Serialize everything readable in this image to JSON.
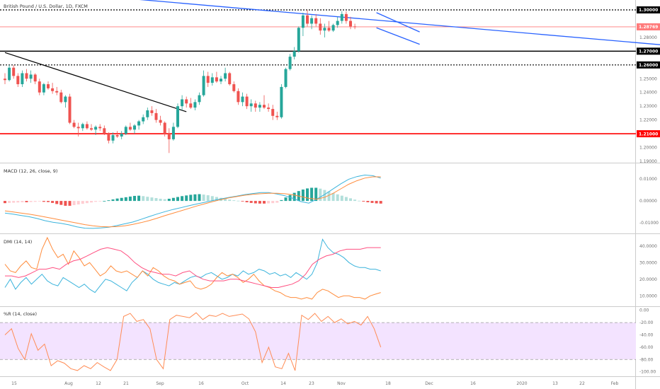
{
  "header": {
    "title": "British Pound / U.S. Dollar, 1D, FXCM"
  },
  "colors": {
    "up": "#26a69a",
    "down": "#ef5350",
    "trendline": "#2962ff",
    "level": "#000000",
    "support": "#ff0000",
    "last_price": "#ff7a7a",
    "macd_line": "#3cb4dc",
    "signal_line": "#ff8c3c",
    "plus_di": "#3cb4dc",
    "minus_di": "#ff8c3c",
    "adx": "#ff4f80",
    "willr": "#ff8c55",
    "willr_band": "#f3e3ff"
  },
  "chart_data": [
    {
      "panel": "price",
      "type": "candlestick",
      "title": "British Pound / U.S. Dollar, 1D, FXCM",
      "ylim": [
        1.19,
        1.305
      ],
      "y_ticks": [
        "1.30000",
        "1.28000",
        "1.27000",
        "1.26000",
        "1.25000",
        "1.24000",
        "1.23000",
        "1.22000",
        "1.21000",
        "1.20000",
        "1.19000"
      ],
      "price_labels": [
        {
          "label": "1.30000",
          "value": 1.3,
          "style": "dashed"
        },
        {
          "label": "1.28769",
          "value": 1.28769,
          "style": "last"
        },
        {
          "label": "1.27000",
          "value": 1.27,
          "style": "solid"
        },
        {
          "label": "1.26000",
          "value": 1.26,
          "style": "dashed"
        },
        {
          "label": "1.21000",
          "value": 1.21,
          "style": "support"
        }
      ],
      "x_labels": [
        "15",
        "Aug",
        "12",
        "21",
        "Sep",
        "16",
        "Oct",
        "14",
        "23",
        "Nov",
        "18",
        "Dec",
        "16",
        "2020",
        "13",
        "22",
        "Feb"
      ],
      "trendlines": [
        {
          "from": [
            0,
            1.316
          ],
          "to": [
            180,
            1.267
          ]
        },
        {
          "from": [
            0,
            1.269
          ],
          "to": [
            42,
            1.226
          ]
        },
        {
          "from": [
            86,
            1.298
          ],
          "to": [
            96,
            1.284
          ]
        },
        {
          "from": [
            86,
            1.287
          ],
          "to": [
            96,
            1.275
          ]
        }
      ],
      "ohlc": [
        [
          1.25,
          1.254,
          1.246,
          1.249
        ],
        [
          1.249,
          1.26,
          1.248,
          1.258
        ],
        [
          1.258,
          1.26,
          1.25,
          1.252
        ],
        [
          1.252,
          1.254,
          1.244,
          1.246
        ],
        [
          1.246,
          1.256,
          1.244,
          1.254
        ],
        [
          1.254,
          1.257,
          1.248,
          1.25
        ],
        [
          1.25,
          1.256,
          1.247,
          1.253
        ],
        [
          1.253,
          1.254,
          1.246,
          1.248
        ],
        [
          1.248,
          1.25,
          1.238,
          1.24
        ],
        [
          1.24,
          1.247,
          1.238,
          1.246
        ],
        [
          1.246,
          1.248,
          1.242,
          1.243
        ],
        [
          1.243,
          1.247,
          1.239,
          1.241
        ],
        [
          1.241,
          1.244,
          1.238,
          1.24
        ],
        [
          1.24,
          1.242,
          1.232,
          1.233
        ],
        [
          1.233,
          1.238,
          1.229,
          1.237
        ],
        [
          1.237,
          1.239,
          1.217,
          1.218
        ],
        [
          1.218,
          1.22,
          1.214,
          1.215
        ],
        [
          1.215,
          1.218,
          1.208,
          1.214
        ],
        [
          1.214,
          1.218,
          1.212,
          1.217
        ],
        [
          1.217,
          1.219,
          1.213,
          1.214
        ],
        [
          1.214,
          1.217,
          1.212,
          1.213
        ],
        [
          1.213,
          1.216,
          1.209,
          1.215
        ],
        [
          1.215,
          1.217,
          1.212,
          1.214
        ],
        [
          1.214,
          1.216,
          1.209,
          1.21
        ],
        [
          1.21,
          1.211,
          1.203,
          1.205
        ],
        [
          1.205,
          1.211,
          1.203,
          1.209
        ],
        [
          1.209,
          1.212,
          1.207,
          1.208
        ],
        [
          1.208,
          1.212,
          1.206,
          1.21
        ],
        [
          1.21,
          1.216,
          1.209,
          1.215
        ],
        [
          1.215,
          1.218,
          1.212,
          1.213
        ],
        [
          1.213,
          1.217,
          1.21,
          1.216
        ],
        [
          1.216,
          1.22,
          1.213,
          1.219
        ],
        [
          1.219,
          1.224,
          1.217,
          1.222
        ],
        [
          1.222,
          1.229,
          1.22,
          1.227
        ],
        [
          1.227,
          1.23,
          1.223,
          1.225
        ],
        [
          1.225,
          1.228,
          1.218,
          1.22
        ],
        [
          1.22,
          1.223,
          1.216,
          1.218
        ],
        [
          1.218,
          1.219,
          1.208,
          1.21
        ],
        [
          1.21,
          1.214,
          1.196,
          1.206
        ],
        [
          1.206,
          1.218,
          1.205,
          1.215
        ],
        [
          1.215,
          1.232,
          1.214,
          1.23
        ],
        [
          1.23,
          1.238,
          1.227,
          1.235
        ],
        [
          1.235,
          1.237,
          1.229,
          1.232
        ],
        [
          1.232,
          1.236,
          1.228,
          1.229
        ],
        [
          1.229,
          1.235,
          1.227,
          1.233
        ],
        [
          1.233,
          1.24,
          1.231,
          1.238
        ],
        [
          1.238,
          1.256,
          1.237,
          1.252
        ],
        [
          1.252,
          1.255,
          1.244,
          1.247
        ],
        [
          1.247,
          1.254,
          1.245,
          1.251
        ],
        [
          1.251,
          1.255,
          1.247,
          1.248
        ],
        [
          1.248,
          1.252,
          1.246,
          1.25
        ],
        [
          1.25,
          1.258,
          1.248,
          1.254
        ],
        [
          1.254,
          1.255,
          1.245,
          1.246
        ],
        [
          1.246,
          1.248,
          1.24,
          1.241
        ],
        [
          1.241,
          1.243,
          1.231,
          1.233
        ],
        [
          1.233,
          1.24,
          1.23,
          1.237
        ],
        [
          1.237,
          1.239,
          1.228,
          1.23
        ],
        [
          1.23,
          1.235,
          1.226,
          1.232
        ],
        [
          1.232,
          1.234,
          1.226,
          1.229
        ],
        [
          1.229,
          1.233,
          1.226,
          1.231
        ],
        [
          1.231,
          1.238,
          1.228,
          1.229
        ],
        [
          1.229,
          1.232,
          1.226,
          1.228
        ],
        [
          1.228,
          1.231,
          1.22,
          1.223
        ],
        [
          1.223,
          1.226,
          1.22,
          1.222
        ],
        [
          1.222,
          1.246,
          1.221,
          1.244
        ],
        [
          1.244,
          1.258,
          1.243,
          1.257
        ],
        [
          1.257,
          1.268,
          1.256,
          1.266
        ],
        [
          1.266,
          1.273,
          1.264,
          1.27
        ],
        [
          1.27,
          1.288,
          1.269,
          1.287
        ],
        [
          1.287,
          1.298,
          1.281,
          1.296
        ],
        [
          1.296,
          1.3,
          1.288,
          1.29
        ],
        [
          1.29,
          1.296,
          1.286,
          1.294
        ],
        [
          1.294,
          1.297,
          1.288,
          1.29
        ],
        [
          1.29,
          1.294,
          1.282,
          1.285
        ],
        [
          1.285,
          1.29,
          1.28,
          1.287
        ],
        [
          1.287,
          1.292,
          1.284,
          1.285
        ],
        [
          1.285,
          1.29,
          1.284,
          1.289
        ],
        [
          1.289,
          1.295,
          1.287,
          1.292
        ],
        [
          1.292,
          1.299,
          1.29,
          1.297
        ],
        [
          1.297,
          1.299,
          1.29,
          1.292
        ],
        [
          1.292,
          1.295,
          1.286,
          1.288
        ],
        [
          1.288,
          1.29,
          1.286,
          1.2877
        ]
      ]
    },
    {
      "panel": "macd",
      "type": "line+histogram",
      "title": "MACD (12, 26, close, 9)",
      "ylim": [
        -0.0135,
        0.0155
      ],
      "y_ticks": [
        "0.01000",
        "0.00000",
        "-0.01000"
      ],
      "histogram": [
        -0.001,
        -0.0009,
        -0.0008,
        -0.0007,
        -0.0006,
        -0.0006,
        -0.0005,
        -0.0004,
        -0.0002,
        -0.0004,
        -0.0005,
        -0.0009,
        -0.0014,
        -0.0018,
        -0.0022,
        -0.0022,
        -0.0019,
        -0.0016,
        -0.0013,
        -0.001,
        -0.0007,
        -0.0004,
        -0.0002,
        0.0,
        0.0003,
        0.0007,
        0.0011,
        0.0014,
        0.0017,
        0.002,
        0.0023,
        0.0024,
        0.0022,
        0.0019,
        0.0016,
        0.0013,
        0.001,
        0.0008,
        0.001,
        0.0014,
        0.0018,
        0.0022,
        0.0025,
        0.0028,
        0.003,
        0.0031,
        0.0029,
        0.0026,
        0.0022,
        0.0018,
        0.0014,
        0.001,
        0.0006,
        0.0003,
        0.0001,
        -0.0002,
        -0.0006,
        -0.0009,
        -0.0011,
        -0.0012,
        -0.0012,
        -0.0011,
        -0.001,
        -0.0008,
        0.0004,
        0.0016,
        0.0027,
        0.0037,
        0.0045,
        0.0052,
        0.0057,
        0.006,
        0.006,
        0.0056,
        0.005,
        0.0043,
        0.0036,
        0.003,
        0.0024,
        0.0018,
        0.0012,
        0.0006,
        0.0001,
        -0.0003,
        -0.0006,
        -0.0009,
        -0.0011,
        -0.0012
      ],
      "macd": [
        -0.0055,
        -0.006,
        -0.0066,
        -0.0072,
        -0.008,
        -0.009,
        -0.0097,
        -0.0102,
        -0.0109,
        -0.0118,
        -0.0124,
        -0.0125,
        -0.0123,
        -0.012,
        -0.0112,
        -0.0104,
        -0.0096,
        -0.0084,
        -0.0072,
        -0.006,
        -0.0049,
        -0.0039,
        -0.0031,
        -0.0022,
        -0.0014,
        -0.0006,
        0.0002,
        0.0009,
        0.0016,
        0.0022,
        0.0029,
        0.0034,
        0.0038,
        0.0038,
        0.0032,
        0.0024,
        0.0012,
        -0.0003,
        -0.001,
        0.0008,
        0.003,
        0.0054,
        0.0078,
        0.0099,
        0.0111,
        0.0118,
        0.0115,
        0.0104
      ],
      "signal": [
        -0.0045,
        -0.005,
        -0.0055,
        -0.006,
        -0.0066,
        -0.0073,
        -0.008,
        -0.0087,
        -0.0094,
        -0.0101,
        -0.0108,
        -0.0113,
        -0.0117,
        -0.0118,
        -0.0117,
        -0.0113,
        -0.0107,
        -0.0099,
        -0.009,
        -0.0079,
        -0.0067,
        -0.0056,
        -0.0045,
        -0.0034,
        -0.0023,
        -0.0013,
        -0.0003,
        0.0006,
        0.0014,
        0.002,
        0.0026,
        0.003,
        0.0033,
        0.0035,
        0.0035,
        0.0033,
        0.0028,
        0.002,
        0.0012,
        0.0008,
        0.0017,
        0.0034,
        0.0055,
        0.0076,
        0.0092,
        0.0104,
        0.011,
        0.011
      ]
    },
    {
      "panel": "dmi",
      "type": "line",
      "title": "DMI (14, 14)",
      "ylim": [
        5,
        45
      ],
      "y_ticks": [
        "40.0000",
        "30.0000",
        "20.0000",
        "10.0000"
      ],
      "series": [
        {
          "key": "plus_di",
          "values": [
            15,
            20,
            14,
            18,
            21,
            17,
            20,
            23,
            19,
            17,
            16,
            21,
            19,
            17,
            15,
            17,
            14,
            12,
            16,
            20,
            19,
            17,
            15,
            13,
            18,
            21,
            25,
            23,
            20,
            18,
            17,
            16,
            18,
            17,
            19,
            21,
            22,
            21,
            23,
            24,
            22,
            20,
            21,
            23,
            22,
            25,
            23,
            24,
            26,
            25,
            23,
            24,
            22,
            23,
            21,
            24,
            22,
            20,
            23,
            30,
            44,
            39,
            36,
            35,
            33,
            30,
            28,
            27,
            27,
            26,
            26,
            25
          ]
        },
        {
          "key": "minus_di",
          "values": [
            29,
            25,
            24,
            28,
            31,
            27,
            26,
            38,
            45,
            38,
            33,
            35,
            29,
            37,
            33,
            28,
            30,
            26,
            22,
            24,
            28,
            25,
            24,
            25,
            23,
            21,
            25,
            22,
            27,
            25,
            22,
            20,
            19,
            17,
            18,
            19,
            15,
            14,
            15,
            17,
            21,
            24,
            22,
            23,
            21,
            18,
            20,
            23,
            19,
            16,
            15,
            13,
            12,
            10,
            9,
            9,
            8,
            9,
            8,
            12,
            14,
            13,
            11,
            9,
            10,
            10,
            9,
            9,
            8,
            10,
            11,
            12
          ]
        },
        {
          "key": "adx",
          "values": [
            22,
            22,
            21,
            22,
            24,
            26,
            26,
            27,
            26,
            29,
            31,
            32,
            34,
            36,
            38,
            39,
            38,
            37,
            34,
            30,
            27,
            25,
            24,
            23,
            23,
            22,
            24,
            25,
            22,
            20,
            19,
            19,
            19,
            20,
            20,
            19,
            18,
            17,
            16,
            15,
            15,
            16,
            17,
            19,
            23,
            29,
            32,
            34,
            35,
            37,
            38,
            38,
            38,
            39,
            39,
            39
          ]
        }
      ]
    },
    {
      "panel": "williams_r",
      "type": "line",
      "title": "%R (14, close)",
      "ylim": [
        -105,
        2
      ],
      "y_ticks": [
        "0.00",
        "-20.00",
        "-40.00",
        "-60.00",
        "-80.00",
        "-100.00"
      ],
      "bands": [
        -20,
        -80
      ],
      "values": [
        -40,
        -30,
        -62,
        -80,
        -38,
        -65,
        -55,
        -90,
        -82,
        -86,
        -95,
        -98,
        -90,
        -95,
        -85,
        -92,
        -98,
        -80,
        -10,
        -5,
        -18,
        -15,
        -30,
        -80,
        -95,
        -15,
        -8,
        -10,
        -12,
        -4,
        -15,
        -8,
        -10,
        -5,
        -10,
        -8,
        -6,
        -14,
        -35,
        -85,
        -60,
        -92,
        -95,
        -70,
        -98,
        -8,
        -15,
        -5,
        -18,
        -10,
        -20,
        -14,
        -22,
        -18,
        -24,
        -10,
        -30,
        -60
      ]
    }
  ]
}
